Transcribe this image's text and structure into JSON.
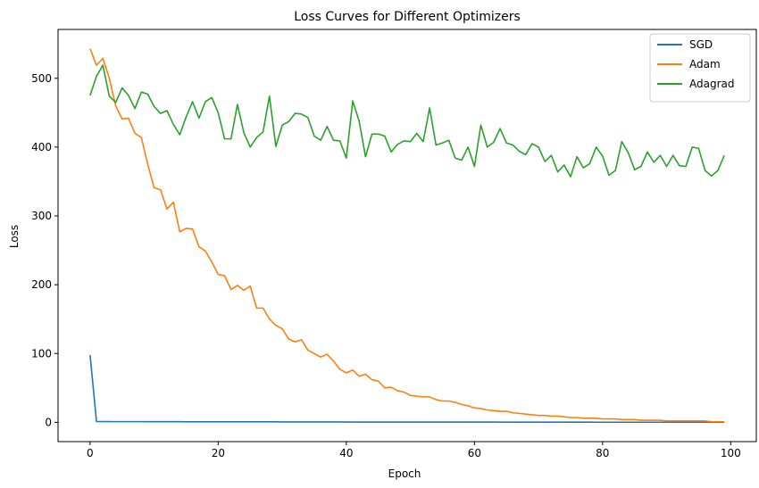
{
  "chart_data": {
    "type": "line",
    "title": "Loss Curves for Different Optimizers",
    "xlabel": "Epoch",
    "ylabel": "Loss",
    "xlim": [
      -5,
      104
    ],
    "ylim": [
      -28,
      571
    ],
    "xticks": [
      0,
      20,
      40,
      60,
      80,
      100
    ],
    "yticks": [
      0,
      100,
      200,
      300,
      400,
      500
    ],
    "grid": false,
    "legend_position": "top-right",
    "series": [
      {
        "name": "SGD",
        "color": "#1f77b4",
        "values": [
          98,
          1.2,
          1.1,
          1.1,
          1,
          1,
          1,
          1,
          1,
          0.9,
          0.9,
          0.9,
          0.9,
          0.9,
          0.9,
          0.8,
          0.8,
          0.8,
          0.8,
          0.8,
          0.8,
          0.8,
          0.7,
          0.7,
          0.7,
          0.7,
          0.7,
          0.7,
          0.7,
          0.7,
          0.6,
          0.6,
          0.6,
          0.6,
          0.6,
          0.6,
          0.6,
          0.6,
          0.6,
          0.6,
          0.5,
          0.5,
          0.5,
          0.5,
          0.5,
          0.5,
          0.5,
          0.5,
          0.5,
          0.5,
          0.5,
          0.4,
          0.4,
          0.4,
          0.4,
          0.4,
          0.4,
          0.4,
          0.4,
          0.4,
          0.4,
          0.4,
          0.4,
          0.4,
          0.3,
          0.3,
          0.3,
          0.3,
          0.3,
          0.3,
          0.3,
          0.3,
          0.3,
          0.3,
          0.3,
          0.3,
          0.3,
          0.3,
          0.3,
          0.2,
          0.2,
          0.2,
          0.2,
          0.2,
          0.2,
          0.2,
          0.2,
          0.2,
          0.2,
          0.2,
          0.2,
          0.2,
          0.2,
          0.2,
          0.2,
          0.2,
          0.2,
          0.2,
          0.2,
          0.2
        ]
      },
      {
        "name": "Adam",
        "color": "#ff7f0e",
        "values": [
          543,
          519,
          529,
          500,
          460,
          441,
          442,
          420,
          414,
          375,
          341,
          338,
          310,
          320,
          277,
          282,
          281,
          255,
          249,
          233,
          215,
          213,
          193,
          199,
          192,
          198,
          166,
          166,
          150,
          141,
          136,
          121,
          117,
          120,
          105,
          100,
          95,
          99,
          89,
          77,
          72,
          76,
          67,
          70,
          62,
          60,
          50,
          51,
          46,
          44,
          39,
          38,
          37,
          37,
          33,
          31,
          31,
          29,
          26,
          24,
          21,
          20,
          18,
          17,
          16,
          16,
          14,
          13,
          12,
          11,
          10,
          10,
          9,
          9,
          8,
          7,
          7,
          6,
          6,
          6,
          5,
          5,
          5,
          4,
          4,
          4,
          3,
          3,
          3,
          3,
          2,
          2,
          2,
          2,
          2,
          2,
          2,
          1,
          1,
          1
        ]
      },
      {
        "name": "Adagrad",
        "color": "#2ca02c",
        "values": [
          475,
          503,
          519,
          474,
          465,
          486,
          475,
          456,
          480,
          477,
          459,
          449,
          453,
          433,
          418,
          444,
          466,
          442,
          466,
          472,
          450,
          412,
          412,
          462,
          421,
          400,
          414,
          422,
          474,
          401,
          432,
          437,
          449,
          448,
          443,
          416,
          410,
          430,
          410,
          409,
          384,
          467,
          438,
          386,
          419,
          419,
          416,
          393,
          404,
          409,
          408,
          420,
          408,
          457,
          403,
          406,
          410,
          384,
          381,
          400,
          372,
          432,
          400,
          407,
          427,
          406,
          403,
          394,
          389,
          405,
          400,
          379,
          388,
          364,
          374,
          357,
          386,
          370,
          376,
          400,
          387,
          359,
          366,
          408,
          392,
          367,
          372,
          393,
          378,
          388,
          372,
          388,
          373,
          372,
          400,
          398,
          366,
          358,
          366,
          388
        ]
      }
    ]
  }
}
